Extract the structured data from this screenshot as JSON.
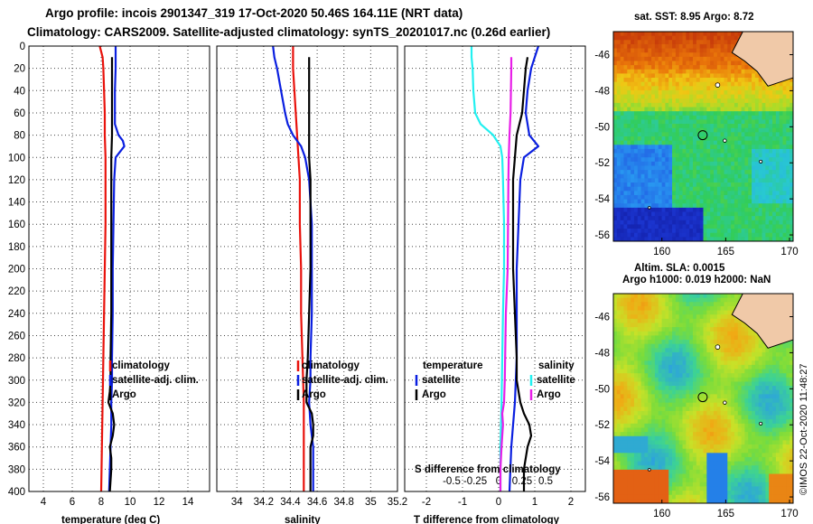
{
  "title": {
    "line1": "Argo profile: incois 2901347_319 17-Oct-2020 50.46S 164.11E (NRT data)",
    "line2": "Climatology: CARS2009. Satellite-adjusted climatology: synTS_20201017.nc (0.26d earlier)"
  },
  "colors": {
    "climatology": "#e8120c",
    "satellite": "#0a1fe0",
    "argo": "#000000",
    "sat_temp_diff": "#22f0f0",
    "sal_diff": "#e81ee8"
  },
  "depth_ticks": [
    "0",
    "20",
    "40",
    "60",
    "80",
    "100",
    "120",
    "140",
    "160",
    "180",
    "200",
    "220",
    "240",
    "260",
    "280",
    "300",
    "320",
    "340",
    "360",
    "380",
    "400"
  ],
  "chart_data": [
    {
      "type": "line",
      "id": "temperature",
      "xlabel": "temperature (deg C)",
      "xlim": [
        3,
        15.5
      ],
      "ylim": [
        0,
        400
      ],
      "xticks": [
        {
          "v": 4,
          "label": "4"
        },
        {
          "v": 6,
          "label": "6"
        },
        {
          "v": 8,
          "label": "8"
        },
        {
          "v": 10,
          "label": "10"
        },
        {
          "v": 12,
          "label": "12"
        },
        {
          "v": 14,
          "label": "14"
        }
      ],
      "legend": [
        "climatology",
        "satellite-adj. clim.",
        "Argo"
      ],
      "series": [
        {
          "name": "climatology",
          "color_key": "climatology",
          "depth": [
            0,
            5,
            10,
            20,
            40,
            60,
            80,
            100,
            120,
            140,
            160,
            200,
            240,
            280,
            320,
            360,
            400
          ],
          "values": [
            7.9,
            8.0,
            8.1,
            8.15,
            8.2,
            8.25,
            8.25,
            8.3,
            8.3,
            8.3,
            8.3,
            8.25,
            8.2,
            8.15,
            8.1,
            8.05,
            8.0
          ]
        },
        {
          "name": "satellite-adj. clim.",
          "color_key": "satellite",
          "depth": [
            0,
            10,
            20,
            40,
            60,
            70,
            80,
            85,
            90,
            95,
            100,
            120,
            160,
            200,
            240,
            280,
            300,
            320,
            340,
            360,
            380,
            400
          ],
          "values": [
            9.0,
            9.0,
            9.0,
            8.95,
            8.95,
            8.95,
            9.2,
            9.5,
            9.6,
            9.3,
            9.0,
            8.9,
            8.85,
            8.8,
            8.8,
            8.75,
            8.75,
            8.7,
            8.7,
            8.65,
            8.6,
            8.55
          ]
        },
        {
          "name": "Argo",
          "color_key": "argo",
          "depth": [
            10,
            20,
            40,
            60,
            80,
            100,
            120,
            160,
            200,
            240,
            280,
            300,
            310,
            320,
            330,
            340,
            350,
            360,
            370,
            380,
            400
          ],
          "values": [
            8.75,
            8.75,
            8.75,
            8.75,
            8.75,
            8.7,
            8.7,
            8.7,
            8.7,
            8.7,
            8.65,
            8.65,
            8.6,
            8.5,
            8.8,
            8.9,
            8.8,
            8.6,
            8.7,
            8.7,
            8.6
          ]
        }
      ]
    },
    {
      "type": "line",
      "id": "salinity",
      "xlabel": "salinity",
      "xlim": [
        33.85,
        35.2
      ],
      "ylim": [
        0,
        400
      ],
      "xticks": [
        {
          "v": 34,
          "label": "34"
        },
        {
          "v": 34.2,
          "label": "34.2"
        },
        {
          "v": 34.4,
          "label": "34.4"
        },
        {
          "v": 34.6,
          "label": "34.6"
        },
        {
          "v": 34.8,
          "label": "34.8"
        },
        {
          "v": 35,
          "label": "35"
        },
        {
          "v": 35.2,
          "label": "35.2"
        }
      ],
      "legend": [
        "climatology",
        "satellite-adj. clim.",
        "Argo"
      ],
      "series": [
        {
          "name": "climatology",
          "color_key": "climatology",
          "depth": [
            0,
            10,
            20,
            40,
            60,
            80,
            100,
            120,
            160,
            200,
            240,
            280,
            320,
            360,
            400
          ],
          "values": [
            34.42,
            34.42,
            34.42,
            34.43,
            34.44,
            34.45,
            34.46,
            34.47,
            34.47,
            34.48,
            34.48,
            34.49,
            34.5,
            34.5,
            34.5
          ]
        },
        {
          "name": "satellite-adj. clim.",
          "color_key": "satellite",
          "depth": [
            0,
            10,
            20,
            40,
            60,
            70,
            80,
            90,
            100,
            120,
            160,
            200,
            240,
            280,
            300,
            320,
            340,
            360,
            380,
            400
          ],
          "values": [
            34.27,
            34.28,
            34.3,
            34.33,
            34.36,
            34.38,
            34.42,
            34.48,
            34.51,
            34.54,
            34.56,
            34.56,
            34.56,
            34.55,
            34.55,
            34.54,
            34.55,
            34.57,
            34.57,
            34.57
          ]
        },
        {
          "name": "Argo",
          "color_key": "argo",
          "depth": [
            10,
            20,
            40,
            60,
            80,
            100,
            120,
            160,
            200,
            240,
            280,
            300,
            320,
            330,
            340,
            350,
            360,
            380,
            400
          ],
          "values": [
            34.54,
            34.54,
            34.54,
            34.54,
            34.54,
            34.54,
            34.55,
            34.55,
            34.55,
            34.54,
            34.53,
            34.52,
            34.52,
            34.56,
            34.57,
            34.57,
            34.55,
            34.55,
            34.55
          ]
        }
      ]
    },
    {
      "type": "line",
      "id": "difference",
      "xlabel": "T difference from climatology",
      "xlabel_top": "S difference from climatology",
      "xlim": [
        -2.6,
        2.4
      ],
      "ylim": [
        0,
        400
      ],
      "xticks": [
        {
          "v": -2,
          "label": "-2"
        },
        {
          "v": -1,
          "label": "-1"
        },
        {
          "v": 0,
          "label": "0"
        },
        {
          "v": 1,
          "label": "1"
        },
        {
          "v": 2,
          "label": "2"
        }
      ],
      "sticks": [
        {
          "v": -1.3,
          "label": "-0.5"
        },
        {
          "v": -0.65,
          "label": "-0.25"
        },
        {
          "v": 0,
          "label": "0"
        },
        {
          "v": 0.65,
          "label": "0.25"
        },
        {
          "v": 1.3,
          "label": "0.5"
        }
      ],
      "legend_temperature": {
        "title": "temperature",
        "items": [
          "satellite",
          "Argo"
        ]
      },
      "legend_salinity": {
        "title": "salinity",
        "items": [
          "satellite",
          "Argo"
        ]
      },
      "series": [
        {
          "name": "temperature satellite",
          "color_key": "satellite",
          "depth": [
            0,
            10,
            20,
            40,
            60,
            80,
            90,
            100,
            120,
            160,
            200,
            240,
            280,
            320,
            360,
            400
          ],
          "values": [
            1.1,
            1.0,
            0.9,
            0.8,
            0.75,
            0.85,
            1.1,
            0.7,
            0.6,
            0.55,
            0.5,
            0.5,
            0.5,
            0.45,
            0.35,
            0.3
          ]
        },
        {
          "name": "temperature Argo",
          "color_key": "argo",
          "depth": [
            10,
            20,
            40,
            60,
            80,
            100,
            120,
            160,
            200,
            240,
            280,
            300,
            320,
            330,
            340,
            350,
            360,
            370,
            380,
            400
          ],
          "values": [
            0.8,
            0.75,
            0.7,
            0.65,
            0.5,
            0.45,
            0.4,
            0.4,
            0.4,
            0.45,
            0.5,
            0.5,
            0.6,
            0.7,
            0.85,
            0.9,
            0.8,
            0.75,
            0.7,
            0.7
          ]
        },
        {
          "name": "salinity satellite",
          "color_key": "sat_temp_diff",
          "depth": [
            0,
            10,
            20,
            40,
            60,
            70,
            80,
            90,
            100,
            120,
            160,
            200,
            240,
            280,
            320,
            360,
            400
          ],
          "values": [
            -0.75,
            -0.75,
            -0.72,
            -0.7,
            -0.65,
            -0.5,
            -0.15,
            0.05,
            0.1,
            0.12,
            0.15,
            0.15,
            0.12,
            0.1,
            0.08,
            0.05,
            0.05
          ]
        },
        {
          "name": "salinity Argo",
          "color_key": "sal_diff",
          "depth": [
            10,
            20,
            40,
            60,
            80,
            100,
            120,
            160,
            200,
            240,
            280,
            300,
            320,
            330,
            340,
            360,
            380,
            400
          ],
          "values": [
            0.35,
            0.35,
            0.34,
            0.33,
            0.3,
            0.28,
            0.27,
            0.26,
            0.25,
            0.2,
            0.18,
            0.17,
            0.15,
            0.1,
            0.12,
            0.08,
            0.05,
            0.05
          ]
        }
      ]
    }
  ],
  "maps": {
    "sst": {
      "title": "sat. SST: 8.95 Argo: 8.72",
      "yticks": [
        "-46",
        "-48",
        "-50",
        "-52",
        "-54",
        "-56"
      ],
      "xticks": [
        "160",
        "165",
        "170"
      ]
    },
    "sla": {
      "title_line1": "Altim. SLA: 0.0015",
      "title_line2": "Argo h1000: 0.019 h2000: NaN",
      "yticks": [
        "-46",
        "-48",
        "-50",
        "-52",
        "-54",
        "-56"
      ],
      "xticks": [
        "160",
        "165",
        "170"
      ]
    }
  },
  "credit": "©IMOS 22-Oct-2020 11:48:27"
}
